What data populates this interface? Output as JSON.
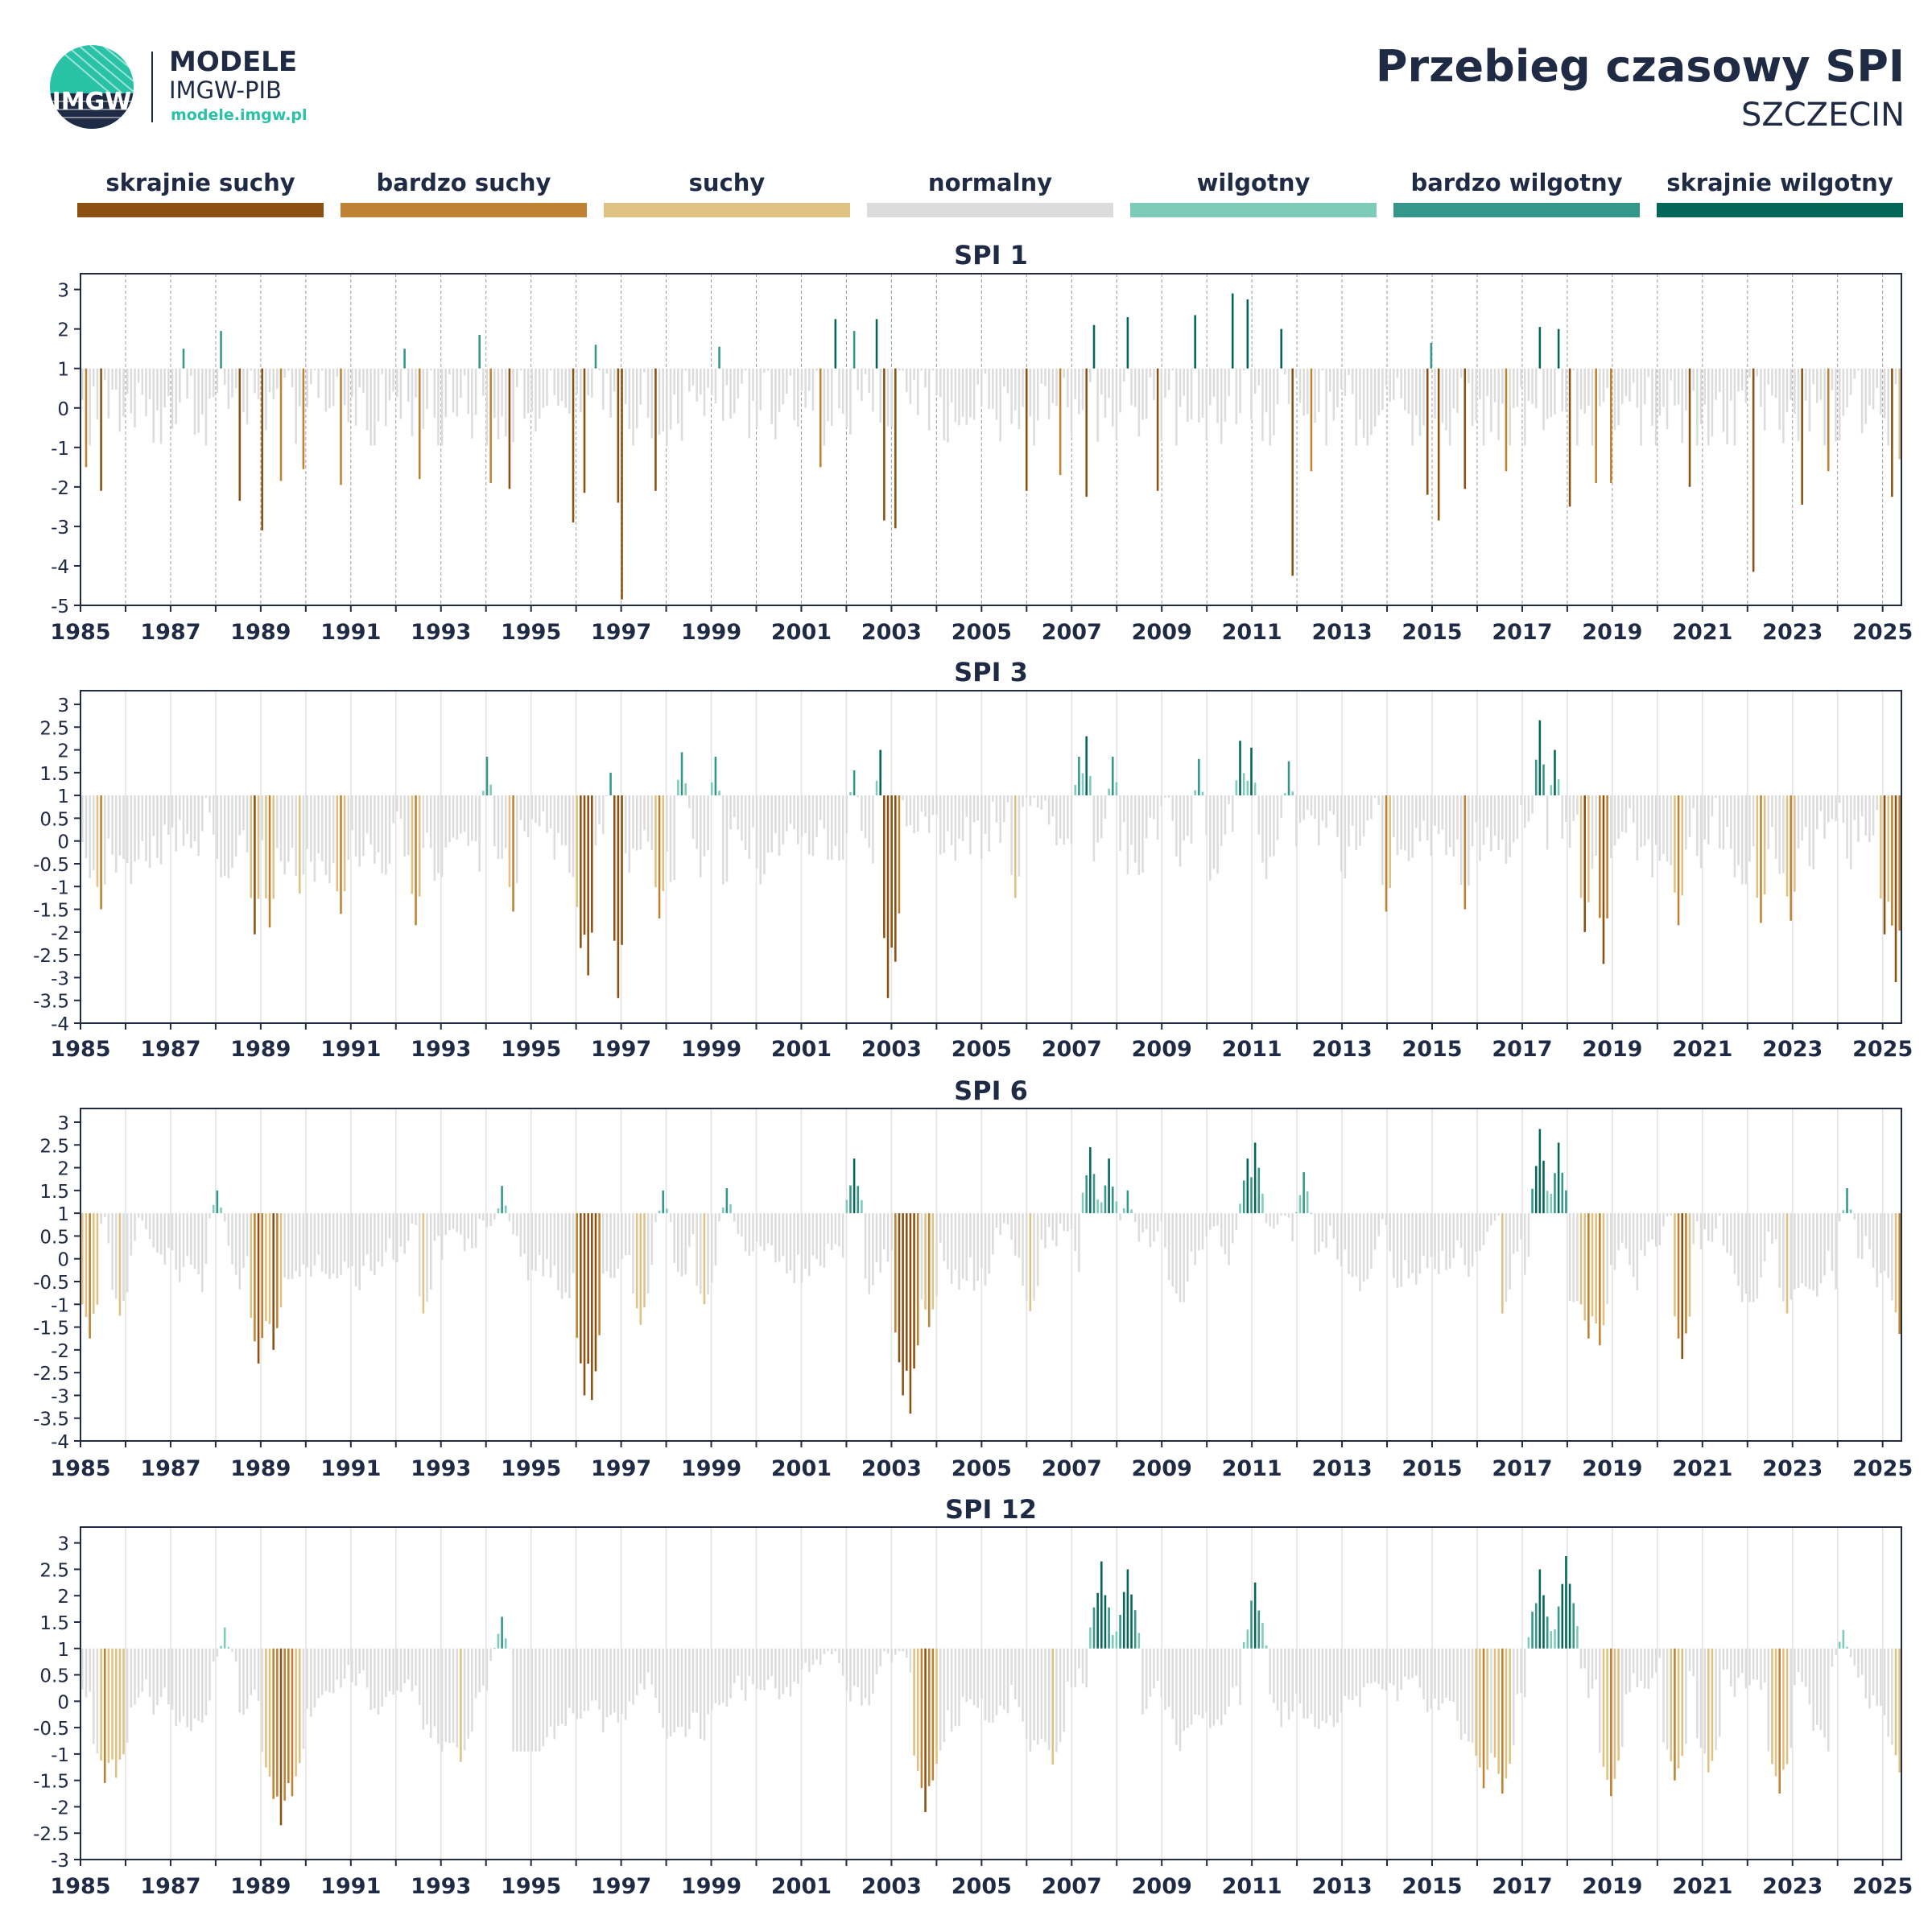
{
  "header": {
    "logo": {
      "brand": "MODELE",
      "org": "IMGW-PIB",
      "url": "modele.imgw.pl",
      "mark_text": "IMGW"
    },
    "title": "Przebieg czasowy SPI",
    "subtitle": "SZCZECIN"
  },
  "legend": [
    {
      "label": "skrajnie suchy",
      "color": "#8c5112"
    },
    {
      "label": "bardzo suchy",
      "color": "#bf8232"
    },
    {
      "label": "suchy",
      "color": "#dfc283"
    },
    {
      "label": "normalny",
      "color": "#dcdcdc"
    },
    {
      "label": "wilgotny",
      "color": "#7ecbb9"
    },
    {
      "label": "bardzo wilgotny",
      "color": "#35968a"
    },
    {
      "label": "skrajnie wilgotny",
      "color": "#046657"
    }
  ],
  "colors": {
    "skrajnie_suchy": "#8c5112",
    "bardzo_suchy": "#bf8232",
    "suchy": "#dfc283",
    "normalny": "#dcdcdc",
    "wilgotny": "#7ecbb9",
    "bardzo_wilgotny": "#35968a",
    "skrajnie_wilgotny": "#046657",
    "axis": "#1f2a44",
    "logo_teal": "#29c2a7"
  },
  "chart_data": [
    {
      "type": "bar",
      "title": "SPI 1",
      "baseline": 1,
      "ylim": [
        -5,
        3.4
      ],
      "yticks": [
        3,
        2,
        1,
        0,
        -1,
        -2,
        -3,
        -4,
        -5
      ],
      "ytick_labels": [
        "3",
        "2",
        "1",
        "0",
        "-1",
        "-2",
        "-3",
        "-4",
        "-5"
      ],
      "xlim": [
        "1985-01",
        "2025-06"
      ],
      "xtick_labels": [
        "1985",
        "1987",
        "1989",
        "1991",
        "1993",
        "1995",
        "1997",
        "1999",
        "2001",
        "2003",
        "2005",
        "2007",
        "2009",
        "2011",
        "2013",
        "2015",
        "2017",
        "2019",
        "2021",
        "2023",
        "2025"
      ],
      "grid": "vertical dashed yearly",
      "legend": "none",
      "highlights": [
        [
          "1985-02",
          -1.5
        ],
        [
          "1985-06",
          -2.1
        ],
        [
          "1987-04",
          1.5
        ],
        [
          "1988-02",
          1.95
        ],
        [
          "1988-07",
          -2.35
        ],
        [
          "1989-01",
          -3.1
        ],
        [
          "1989-06",
          -1.85
        ],
        [
          "1989-12",
          -1.55
        ],
        [
          "1990-10",
          -1.95
        ],
        [
          "1992-03",
          1.5
        ],
        [
          "1992-07",
          -1.8
        ],
        [
          "1993-11",
          1.85
        ],
        [
          "1994-02",
          -1.9
        ],
        [
          "1994-07",
          -2.05
        ],
        [
          "1995-12",
          -2.9
        ],
        [
          "1996-03",
          -2.15
        ],
        [
          "1996-06",
          1.6
        ],
        [
          "1996-12",
          -2.4
        ],
        [
          "1997-01",
          -4.85
        ],
        [
          "1997-10",
          -2.1
        ],
        [
          "1999-03",
          1.55
        ],
        [
          "2001-06",
          -1.5
        ],
        [
          "2001-10",
          2.25
        ],
        [
          "2002-03",
          1.95
        ],
        [
          "2002-09",
          2.25
        ],
        [
          "2002-11",
          -2.85
        ],
        [
          "2003-02",
          -3.05
        ],
        [
          "2006-01",
          -2.1
        ],
        [
          "2006-10",
          -1.7
        ],
        [
          "2007-05",
          -2.25
        ],
        [
          "2007-07",
          2.1
        ],
        [
          "2008-04",
          2.3
        ],
        [
          "2008-12",
          -2.1
        ],
        [
          "2009-10",
          2.35
        ],
        [
          "2010-08",
          2.9
        ],
        [
          "2010-12",
          2.75
        ],
        [
          "2011-09",
          2.0
        ],
        [
          "2011-12",
          -4.25
        ],
        [
          "2012-05",
          -1.6
        ],
        [
          "2014-12",
          -2.2
        ],
        [
          "2015-01",
          1.65
        ],
        [
          "2015-03",
          -2.85
        ],
        [
          "2015-10",
          -2.05
        ],
        [
          "2016-09",
          -1.6
        ],
        [
          "2017-06",
          2.05
        ],
        [
          "2017-11",
          2.0
        ],
        [
          "2018-02",
          -2.5
        ],
        [
          "2018-09",
          -1.9
        ],
        [
          "2019-01",
          -1.9
        ],
        [
          "2020-10",
          -2.0
        ],
        [
          "2022-03",
          -4.15
        ],
        [
          "2023-04",
          -2.45
        ],
        [
          "2023-11",
          -1.6
        ],
        [
          "2025-04",
          -2.25
        ],
        [
          "2025-06",
          -1.3
        ]
      ]
    },
    {
      "type": "bar",
      "title": "SPI 3",
      "baseline": 1,
      "ylim": [
        -4,
        3.3
      ],
      "yticks": [
        3,
        2.5,
        2,
        1.5,
        1,
        0.5,
        0,
        -0.5,
        -1,
        -1.5,
        -2,
        -2.5,
        -3,
        -3.5,
        -4
      ],
      "ytick_labels": [
        "3",
        "2.5",
        "2",
        "1.5",
        "1",
        "0.5",
        "0",
        "-0.5",
        "-1",
        "-1.5",
        "-2",
        "-2.5",
        "-3",
        "-3.5",
        "-4"
      ],
      "xlim": [
        "1985-01",
        "2025-06"
      ],
      "xtick_labels": [
        "1985",
        "1987",
        "1989",
        "1991",
        "1993",
        "1995",
        "1997",
        "1999",
        "2001",
        "2003",
        "2005",
        "2007",
        "2009",
        "2011",
        "2013",
        "2015",
        "2017",
        "2019",
        "2021",
        "2023",
        "2025"
      ],
      "grid": "vertical solid yearly",
      "legend": "none",
      "highlights": [
        [
          "1985-06",
          -1.5
        ],
        [
          "1988-11",
          -2.05
        ],
        [
          "1989-03",
          -1.9
        ],
        [
          "1989-11",
          -1.15
        ],
        [
          "1990-10",
          -1.6
        ],
        [
          "1992-06",
          -1.85
        ],
        [
          "1994-01",
          1.85
        ],
        [
          "1994-08",
          -1.55
        ],
        [
          "1996-02",
          -2.35
        ],
        [
          "1996-04",
          -2.95
        ],
        [
          "1996-10",
          1.5
        ],
        [
          "1996-12",
          -3.45
        ],
        [
          "1997-11",
          -1.7
        ],
        [
          "1998-05",
          1.95
        ],
        [
          "1999-02",
          1.85
        ],
        [
          "2002-03",
          1.55
        ],
        [
          "2002-10",
          2.0
        ],
        [
          "2002-12",
          -3.45
        ],
        [
          "2003-02",
          -2.65
        ],
        [
          "2005-10",
          -1.25
        ],
        [
          "2007-03",
          1.85
        ],
        [
          "2007-05",
          2.3
        ],
        [
          "2007-12",
          1.85
        ],
        [
          "2009-11",
          1.8
        ],
        [
          "2010-10",
          2.2
        ],
        [
          "2011-01",
          2.05
        ],
        [
          "2011-11",
          1.75
        ],
        [
          "2014-01",
          -1.55
        ],
        [
          "2015-10",
          -1.5
        ],
        [
          "2017-06",
          2.65
        ],
        [
          "2017-10",
          2.0
        ],
        [
          "2018-06",
          -2.0
        ],
        [
          "2018-11",
          -2.7
        ],
        [
          "2020-07",
          -1.85
        ],
        [
          "2022-05",
          -1.8
        ],
        [
          "2023-01",
          -1.75
        ],
        [
          "2025-02",
          -2.05
        ],
        [
          "2025-05",
          -3.1
        ]
      ]
    },
    {
      "type": "bar",
      "title": "SPI 6",
      "baseline": 1,
      "ylim": [
        -4,
        3.3
      ],
      "yticks": [
        3,
        2.5,
        2,
        1.5,
        1,
        0.5,
        0,
        -0.5,
        -1,
        -1.5,
        -2,
        -2.5,
        -3,
        -3.5,
        -4
      ],
      "ytick_labels": [
        "3",
        "2.5",
        "2",
        "1.5",
        "1",
        "0.5",
        "0",
        "-0.5",
        "-1",
        "-1.5",
        "-2",
        "-2.5",
        "-3",
        "-3.5",
        "-4"
      ],
      "xlim": [
        "1985-01",
        "2025-06"
      ],
      "xtick_labels": [
        "1985",
        "1987",
        "1989",
        "1991",
        "1993",
        "1995",
        "1997",
        "1999",
        "2001",
        "2003",
        "2005",
        "2007",
        "2009",
        "2011",
        "2013",
        "2015",
        "2017",
        "2019",
        "2021",
        "2023",
        "2025"
      ],
      "grid": "vertical solid yearly",
      "legend": "none",
      "highlights": [
        [
          "1985-03",
          -1.75
        ],
        [
          "1985-11",
          -1.25
        ],
        [
          "1988-01",
          1.5
        ],
        [
          "1988-12",
          -2.3
        ],
        [
          "1989-04",
          -2.0
        ],
        [
          "1992-08",
          -1.2
        ],
        [
          "1994-05",
          1.6
        ],
        [
          "1996-03",
          -3.0
        ],
        [
          "1996-05",
          -3.1
        ],
        [
          "1997-06",
          -1.45
        ],
        [
          "1997-12",
          1.5
        ],
        [
          "1998-11",
          -1.0
        ],
        [
          "1999-05",
          1.55
        ],
        [
          "2002-03",
          2.2
        ],
        [
          "2003-04",
          -3.0
        ],
        [
          "2003-06",
          -3.4
        ],
        [
          "2003-11",
          -1.5
        ],
        [
          "2006-02",
          -1.15
        ],
        [
          "2007-06",
          2.45
        ],
        [
          "2007-11",
          2.2
        ],
        [
          "2008-04",
          1.5
        ],
        [
          "2010-12",
          2.2
        ],
        [
          "2011-02",
          2.55
        ],
        [
          "2012-03",
          1.9
        ],
        [
          "2016-08",
          -1.2
        ],
        [
          "2017-06",
          2.85
        ],
        [
          "2017-11",
          2.55
        ],
        [
          "2018-07",
          -1.75
        ],
        [
          "2018-10",
          -1.9
        ],
        [
          "2020-07",
          -1.75
        ],
        [
          "2020-08",
          -2.2
        ],
        [
          "2022-12",
          -1.2
        ],
        [
          "2024-04",
          1.55
        ],
        [
          "2025-06",
          -1.65
        ]
      ]
    },
    {
      "type": "bar",
      "title": "SPI 12",
      "baseline": 1,
      "ylim": [
        -3,
        3.3
      ],
      "yticks": [
        3,
        2.5,
        2,
        1.5,
        1,
        0.5,
        0,
        -0.5,
        -1,
        -1.5,
        -2,
        -2.5,
        -3
      ],
      "ytick_labels": [
        "3",
        "2.5",
        "2",
        "1.5",
        "1",
        "0.5",
        "0",
        "-0.5",
        "-1",
        "-1.5",
        "-2",
        "-2.5",
        "-3"
      ],
      "xlim": [
        "1985-01",
        "2025-06"
      ],
      "xtick_labels": [
        "1985",
        "1987",
        "1989",
        "1991",
        "1993",
        "1995",
        "1997",
        "1999",
        "2001",
        "2003",
        "2005",
        "2007",
        "2009",
        "2011",
        "2013",
        "2015",
        "2017",
        "2019",
        "2021",
        "2023",
        "2025"
      ],
      "grid": "vertical solid yearly",
      "legend": "none",
      "highlights": [
        [
          "1985-07",
          -1.55
        ],
        [
          "1985-10",
          -1.45
        ],
        [
          "1988-03",
          1.4
        ],
        [
          "1989-04",
          -1.85
        ],
        [
          "1989-06",
          -2.35
        ],
        [
          "1989-09",
          -1.8
        ],
        [
          "1993-06",
          -1.15
        ],
        [
          "1994-05",
          1.6
        ],
        [
          "2003-10",
          -2.1
        ],
        [
          "2003-12",
          -1.5
        ],
        [
          "2006-08",
          -1.2
        ],
        [
          "2007-09",
          2.65
        ],
        [
          "2008-04",
          2.5
        ],
        [
          "2011-02",
          2.25
        ],
        [
          "2016-03",
          -1.65
        ],
        [
          "2016-08",
          -1.75
        ],
        [
          "2017-06",
          2.5
        ],
        [
          "2018-01",
          2.75
        ],
        [
          "2019-01",
          -1.8
        ],
        [
          "2020-06",
          -1.5
        ],
        [
          "2021-03",
          -1.35
        ],
        [
          "2022-10",
          -1.75
        ],
        [
          "2024-03",
          1.35
        ],
        [
          "2025-06",
          -1.35
        ]
      ]
    }
  ]
}
